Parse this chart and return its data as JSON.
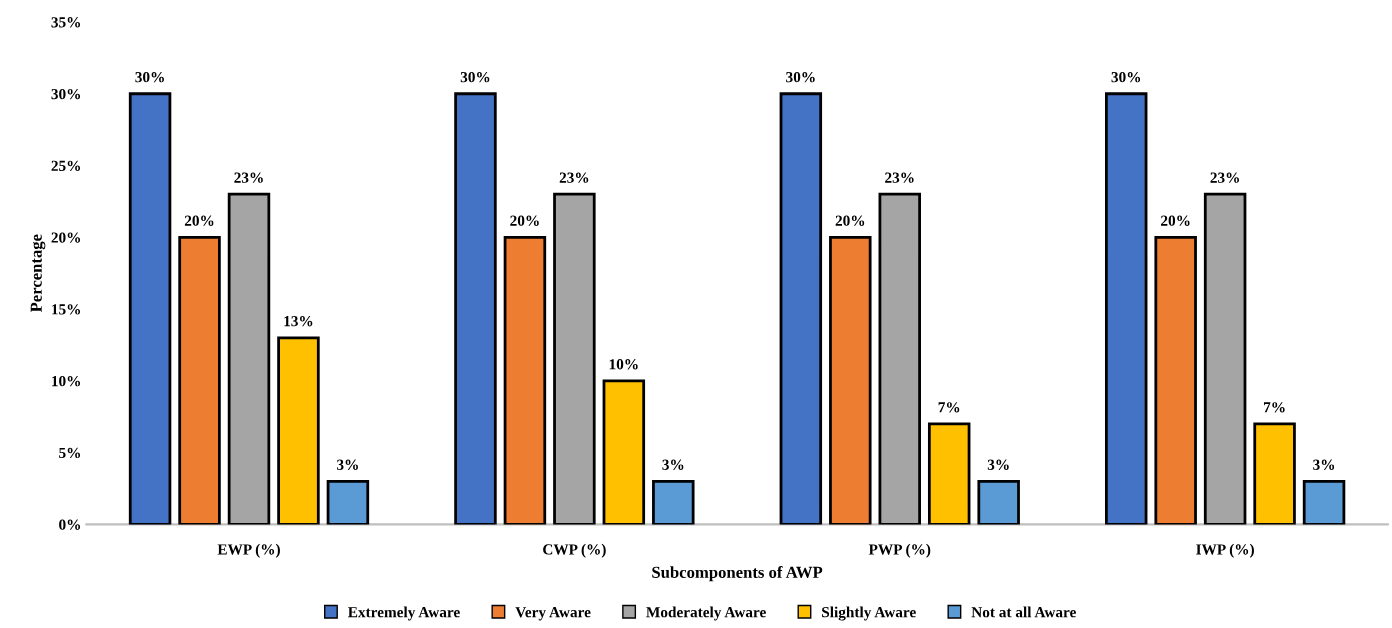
{
  "chart_data": {
    "type": "bar",
    "xlabel": "Subcomponents of AWP",
    "ylabel": "Percentage",
    "categories": [
      "EWP (%)",
      "CWP (%)",
      "PWP (%)",
      "IWP (%)"
    ],
    "series": [
      {
        "name": "Extremely Aware",
        "color": "#4472c4",
        "values": [
          30,
          30,
          30,
          30
        ],
        "value_labels": [
          "30%",
          "30%",
          "30%",
          "30%"
        ]
      },
      {
        "name": "Very Aware",
        "color": "#ed7d31",
        "values": [
          20,
          20,
          20,
          20
        ],
        "value_labels": [
          "20%",
          "20%",
          "20%",
          "20%"
        ]
      },
      {
        "name": "Moderately Aware",
        "color": "#a5a5a5",
        "values": [
          23,
          23,
          23,
          23
        ],
        "value_labels": [
          "23%",
          "23%",
          "23%",
          "23%"
        ]
      },
      {
        "name": "Slightly Aware",
        "color": "#ffc000",
        "values": [
          13,
          10,
          7,
          7
        ],
        "value_labels": [
          "13%",
          "10%",
          "7%",
          "7%"
        ]
      },
      {
        "name": "Not at all Aware",
        "color": "#5b9bd5",
        "values": [
          3,
          3,
          3,
          3
        ],
        "value_labels": [
          "3%",
          "3%",
          "3%",
          "3%"
        ]
      }
    ],
    "ylim": [
      0,
      35
    ],
    "yticks": [
      {
        "value": 0,
        "label": "0%"
      },
      {
        "value": 5,
        "label": "5%"
      },
      {
        "value": 10,
        "label": "10%"
      },
      {
        "value": 15,
        "label": "15%"
      },
      {
        "value": 20,
        "label": "20%"
      },
      {
        "value": 25,
        "label": "25%"
      },
      {
        "value": 30,
        "label": "30%"
      },
      {
        "value": 35,
        "label": "35%"
      }
    ],
    "grid": false,
    "legend": "bottom"
  }
}
